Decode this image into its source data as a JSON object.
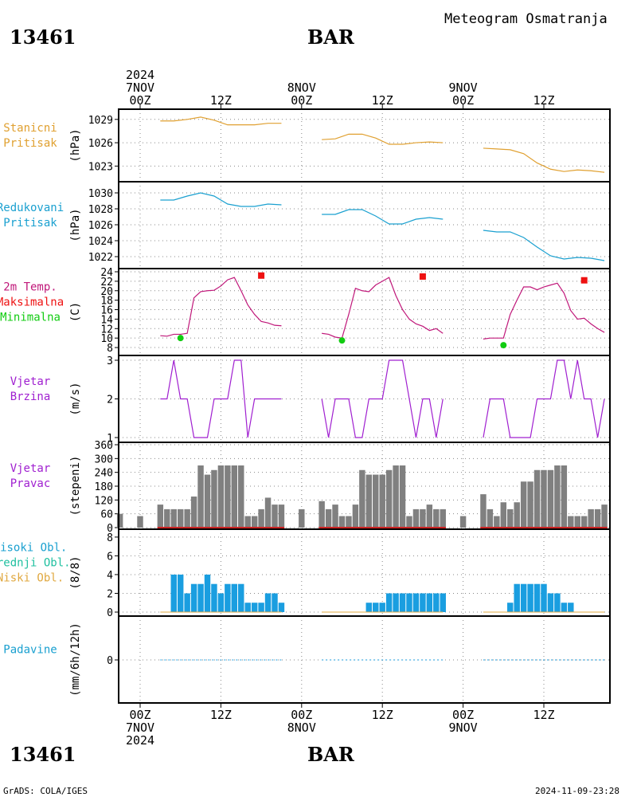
{
  "header": {
    "station": "13461",
    "name": "BAR",
    "subtitle": "Meteogram Osmatranja",
    "footer_left": "GrADS: COLA/IGES",
    "footer_right": "2024-11-09-23:28"
  },
  "colors": {
    "pressure": "#e0a030",
    "reduced": "#1aa0d0",
    "temp": "#c0187a",
    "tmax": "#ee1111",
    "tmin": "#11cc11",
    "wind": "#a020d0",
    "winddir": "#808080",
    "clouds": "#1a9ee0",
    "lowcloud": "#e0a840",
    "midcloud": "#20c0a0",
    "precip": "#1a9ee0"
  },
  "time_axis": {
    "top": [
      {
        "hour": 0,
        "lines": [
          "2024",
          "7NOV",
          "00Z"
        ]
      },
      {
        "hour": 12,
        "lines": [
          "12Z"
        ]
      },
      {
        "hour": 24,
        "lines": [
          "8NOV",
          "00Z"
        ]
      },
      {
        "hour": 36,
        "lines": [
          "12Z"
        ]
      },
      {
        "hour": 48,
        "lines": [
          "9NOV",
          "00Z"
        ]
      },
      {
        "hour": 60,
        "lines": [
          "12Z"
        ]
      }
    ],
    "bottom": [
      {
        "hour": 0,
        "lines": [
          "00Z",
          "7NOV",
          "2024"
        ]
      },
      {
        "hour": 12,
        "lines": [
          "12Z"
        ]
      },
      {
        "hour": 24,
        "lines": [
          "00Z",
          "8NOV"
        ]
      },
      {
        "hour": 36,
        "lines": [
          "12Z"
        ]
      },
      {
        "hour": 48,
        "lines": [
          "00Z",
          "9NOV"
        ]
      },
      {
        "hour": 60,
        "lines": [
          "12Z"
        ]
      }
    ]
  },
  "chart_data": [
    {
      "id": "station_pressure",
      "type": "line",
      "label_lines": [
        "Stanicni",
        "Pritisak"
      ],
      "label_colors": [
        "#e0a030",
        "#e0a030"
      ],
      "ylabel": "(hPa)",
      "ylim": [
        1021.5,
        1029.8
      ],
      "yticks": [
        1023,
        1026,
        1029
      ],
      "segments": [
        {
          "x": [
            3,
            5,
            7,
            9,
            11,
            13,
            15,
            17,
            19,
            21
          ],
          "y": [
            1028.8,
            1028.8,
            1029.0,
            1029.3,
            1028.9,
            1028.3,
            1028.3,
            1028.3,
            1028.5,
            1028.5
          ]
        },
        {
          "x": [
            27,
            29,
            31,
            33,
            35,
            37,
            39,
            41,
            43,
            45
          ],
          "y": [
            1026.4,
            1026.5,
            1027.1,
            1027.1,
            1026.6,
            1025.8,
            1025.8,
            1026.0,
            1026.1,
            1026.0
          ]
        },
        {
          "x": [
            51,
            53,
            55,
            57,
            59,
            61,
            63,
            65,
            67,
            69
          ],
          "y": [
            1025.3,
            1025.2,
            1025.1,
            1024.6,
            1023.4,
            1022.6,
            1022.3,
            1022.5,
            1022.4,
            1022.2
          ]
        }
      ]
    },
    {
      "id": "reduced_pressure",
      "type": "line",
      "label_lines": [
        "Redukovani",
        "Pritisak"
      ],
      "label_colors": [
        "#1aa0d0",
        "#1aa0d0"
      ],
      "ylabel": "(hPa)",
      "ylim": [
        1021,
        1031
      ],
      "yticks": [
        1022,
        1024,
        1026,
        1028,
        1030
      ],
      "segments": [
        {
          "x": [
            3,
            5,
            7,
            9,
            11,
            13,
            15,
            17,
            19,
            21
          ],
          "y": [
            1029.1,
            1029.1,
            1029.6,
            1030.0,
            1029.6,
            1028.6,
            1028.3,
            1028.3,
            1028.6,
            1028.5
          ]
        },
        {
          "x": [
            27,
            29,
            31,
            33,
            35,
            37,
            39,
            41,
            43,
            45
          ],
          "y": [
            1027.3,
            1027.3,
            1027.9,
            1027.9,
            1027.1,
            1026.1,
            1026.1,
            1026.7,
            1026.9,
            1026.7
          ]
        },
        {
          "x": [
            51,
            53,
            55,
            57,
            59,
            61,
            63,
            65,
            67,
            69
          ],
          "y": [
            1025.3,
            1025.1,
            1025.1,
            1024.4,
            1023.2,
            1022.1,
            1021.7,
            1021.9,
            1021.8,
            1021.5
          ]
        }
      ]
    },
    {
      "id": "temperature",
      "type": "line",
      "label_lines": [
        "2m Temp.",
        "Maksimalna",
        "Minimalna"
      ],
      "label_colors": [
        "#c0187a",
        "#ee1111",
        "#11cc11"
      ],
      "ylabel": "(C)",
      "ylim": [
        7,
        24
      ],
      "yticks": [
        8,
        10,
        12,
        14,
        16,
        18,
        20,
        22,
        24
      ],
      "segments": [
        {
          "x": [
            3,
            4,
            5,
            6,
            7,
            8,
            9,
            10,
            11,
            12,
            13,
            14,
            15,
            16,
            17,
            18,
            19,
            20,
            21
          ],
          "y": [
            10.5,
            10.4,
            10.8,
            10.8,
            11.0,
            18.5,
            19.8,
            20.0,
            20.1,
            21.0,
            22.3,
            22.8,
            20.0,
            17.0,
            15.0,
            13.5,
            13.2,
            12.7,
            12.6
          ]
        },
        {
          "x": [
            27,
            28,
            29,
            30,
            31,
            32,
            33,
            34,
            35,
            36,
            37,
            38,
            39,
            40,
            41,
            42,
            43,
            44,
            45
          ],
          "y": [
            11.0,
            10.8,
            10.2,
            10.0,
            15.0,
            20.5,
            20.0,
            19.8,
            21.2,
            22.0,
            22.8,
            19.0,
            16.0,
            14.0,
            13.0,
            12.5,
            11.6,
            12.0,
            11.0
          ]
        },
        {
          "x": [
            51,
            52,
            53,
            54,
            55,
            56,
            57,
            58,
            59,
            60,
            61,
            62,
            63,
            64,
            65,
            66,
            67,
            68,
            69
          ],
          "y": [
            9.8,
            10.0,
            10.0,
            10.0,
            15.0,
            18.0,
            20.8,
            20.8,
            20.2,
            20.8,
            21.2,
            21.6,
            19.5,
            15.8,
            14.0,
            14.2,
            13.0,
            12.0,
            11.2
          ]
        }
      ],
      "tmax": [
        {
          "x": 18,
          "y": 23.2
        },
        {
          "x": 42,
          "y": 23.0
        },
        {
          "x": 66,
          "y": 22.2
        }
      ],
      "tmin": [
        {
          "x": 6,
          "y": 10.0
        },
        {
          "x": 30,
          "y": 9.5
        },
        {
          "x": 54,
          "y": 8.5
        }
      ]
    },
    {
      "id": "wind_speed",
      "type": "line",
      "label_lines": [
        "Vjetar",
        "Brzina"
      ],
      "label_colors": [
        "#a020d0",
        "#a020d0"
      ],
      "ylabel": "(m/s)",
      "ylim": [
        1,
        3
      ],
      "yticks": [
        1,
        2,
        3
      ],
      "segments": [
        {
          "x": [
            3,
            4,
            5,
            6,
            7,
            8,
            9,
            10,
            11,
            12,
            13,
            14,
            15,
            16,
            17,
            18,
            19,
            20,
            21
          ],
          "y": [
            2,
            2,
            3,
            2,
            2,
            1,
            1,
            1,
            2,
            2,
            2,
            3,
            3,
            1,
            2,
            2,
            2,
            2,
            2
          ]
        },
        {
          "x": [
            27,
            28,
            29,
            30,
            31,
            32,
            33,
            34,
            35,
            36,
            37,
            38,
            39,
            40,
            41,
            42,
            43,
            44,
            45
          ],
          "y": [
            2,
            1,
            2,
            2,
            2,
            1,
            1,
            2,
            2,
            2,
            3,
            3,
            3,
            2,
            1,
            2,
            2,
            1,
            2
          ]
        },
        {
          "x": [
            51,
            52,
            53,
            54,
            55,
            56,
            57,
            58,
            59,
            60,
            61,
            62,
            63,
            64,
            65,
            66,
            67,
            68,
            69
          ],
          "y": [
            1,
            2,
            2,
            2,
            1,
            1,
            1,
            1,
            2,
            2,
            2,
            3,
            3,
            2,
            3,
            2,
            2,
            1,
            2
          ]
        }
      ]
    },
    {
      "id": "wind_direction",
      "type": "bar",
      "label_lines": [
        "Vjetar",
        "Pravac"
      ],
      "label_colors": [
        "#a020d0",
        "#a020d0"
      ],
      "ylabel": "(stepeni)",
      "ylim": [
        0,
        360
      ],
      "yticks": [
        0,
        60,
        120,
        180,
        240,
        300,
        360
      ],
      "x": [
        -3,
        0,
        3,
        4,
        5,
        6,
        7,
        8,
        9,
        10,
        11,
        12,
        13,
        14,
        15,
        16,
        17,
        18,
        19,
        20,
        21,
        24,
        27,
        28,
        29,
        30,
        31,
        32,
        33,
        34,
        35,
        36,
        37,
        38,
        39,
        40,
        41,
        42,
        43,
        44,
        45,
        48,
        51,
        52,
        53,
        54,
        55,
        56,
        57,
        58,
        59,
        60,
        61,
        62,
        63,
        64,
        65,
        66,
        67,
        68,
        69
      ],
      "values": [
        60,
        50,
        100,
        80,
        80,
        80,
        80,
        135,
        270,
        230,
        250,
        270,
        270,
        270,
        270,
        50,
        50,
        80,
        130,
        100,
        100,
        80,
        115,
        80,
        100,
        50,
        50,
        100,
        250,
        230,
        230,
        230,
        250,
        270,
        270,
        50,
        80,
        80,
        100,
        80,
        80,
        50,
        145,
        80,
        50,
        110,
        80,
        110,
        200,
        200,
        250,
        250,
        250,
        270,
        270,
        50,
        50,
        50,
        80,
        80,
        100
      ]
    },
    {
      "id": "clouds",
      "type": "bar",
      "label_lines": [
        "Visoki Obl.",
        "Srednji Obl.",
        "Niski Obl."
      ],
      "label_colors": [
        "#1aa0d0",
        "#20c0a0",
        "#e0a840"
      ],
      "ylabel": "(8/8)",
      "ylim": [
        0,
        8.5
      ],
      "yticks": [
        0,
        2,
        4,
        6,
        8
      ],
      "x": [
        4,
        5,
        6,
        7,
        8,
        9,
        10,
        11,
        12,
        13,
        14,
        15,
        16,
        17,
        18,
        19,
        20,
        21,
        28,
        29,
        30,
        31,
        32,
        33,
        34,
        35,
        36,
        37,
        38,
        39,
        40,
        41,
        42,
        43,
        44,
        45,
        52,
        53,
        54,
        55,
        56,
        57,
        58,
        59,
        60,
        61,
        62,
        63,
        64
      ],
      "values": [
        0,
        4,
        4,
        2,
        3,
        3,
        4,
        3,
        2,
        3,
        3,
        3,
        1,
        1,
        1,
        2,
        2,
        1,
        0,
        0,
        0,
        0,
        0,
        0,
        1,
        1,
        1,
        2,
        2,
        2,
        2,
        2,
        2,
        2,
        2,
        2,
        0,
        0,
        0,
        1,
        3,
        3,
        3,
        3,
        3,
        2,
        2,
        1,
        1
      ]
    },
    {
      "id": "precipitation",
      "type": "line",
      "label_lines": [
        "Padavine"
      ],
      "label_colors": [
        "#1aa0d0"
      ],
      "ylabel": "(mm/6h/12h)",
      "ylim": [
        -1,
        1
      ],
      "yticks": [
        0
      ],
      "segments": [
        {
          "x": [
            3,
            21
          ],
          "y": [
            0,
            0
          ]
        },
        {
          "x": [
            27,
            45
          ],
          "y": [
            0,
            0
          ]
        },
        {
          "x": [
            51,
            69
          ],
          "y": [
            0,
            0
          ]
        }
      ]
    }
  ]
}
